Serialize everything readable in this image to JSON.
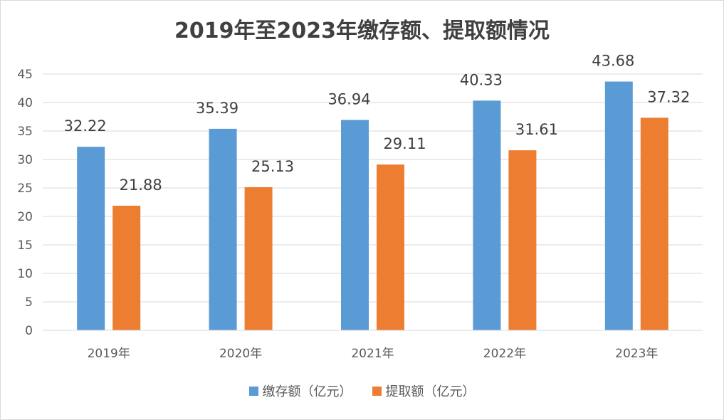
{
  "chart_data": {
    "type": "bar",
    "title": "2019年至2023年缴存额、提取额情况",
    "categories": [
      "2019年",
      "2020年",
      "2021年",
      "2022年",
      "2023年"
    ],
    "series": [
      {
        "name": "缴存额（亿元）",
        "color": "#5b9bd5",
        "values": [
          32.22,
          35.39,
          36.94,
          40.33,
          43.68
        ]
      },
      {
        "name": "提取额（亿元）",
        "color": "#ed7d31",
        "values": [
          21.88,
          25.13,
          29.11,
          31.61,
          37.32
        ]
      }
    ],
    "ylim": [
      0,
      45
    ],
    "yticks": [
      0,
      5,
      10,
      15,
      20,
      25,
      30,
      35,
      40,
      45
    ],
    "grid": true,
    "legend": "bottom"
  }
}
